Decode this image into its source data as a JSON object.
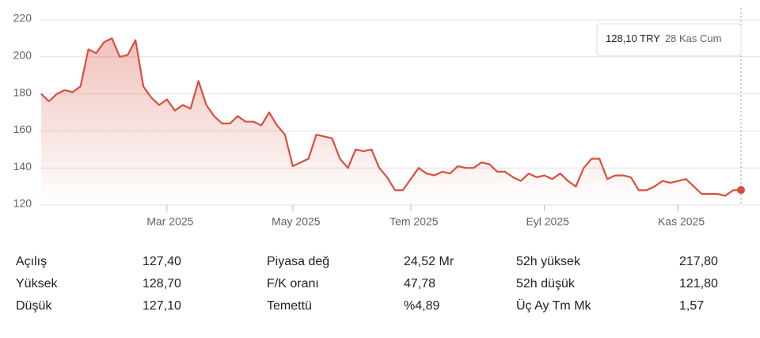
{
  "chart_data": {
    "type": "line",
    "color": "#d94f3d",
    "categories": [
      null,
      null,
      null,
      null,
      null,
      null,
      null,
      null,
      null,
      null,
      null,
      null,
      null,
      null,
      null,
      null,
      "Mar 2025",
      null,
      null,
      null,
      null,
      null,
      null,
      null,
      null,
      null,
      null,
      null,
      null,
      null,
      null,
      null,
      "May 2025",
      null,
      null,
      null,
      null,
      null,
      null,
      null,
      null,
      null,
      null,
      null,
      null,
      null,
      null,
      "Tem 2025",
      null,
      null,
      null,
      null,
      null,
      null,
      null,
      null,
      null,
      null,
      null,
      null,
      null,
      null,
      null,
      null,
      "Eyl 2025",
      null,
      null,
      null,
      null,
      null,
      null,
      null,
      null,
      null,
      null,
      null,
      null,
      null,
      null,
      null,
      null,
      "Kas 2025",
      null,
      null,
      null,
      null,
      null,
      null,
      null,
      null
    ],
    "values": [
      180,
      176,
      180,
      182,
      181,
      184,
      204,
      202,
      208,
      210,
      200,
      201,
      209,
      184,
      178,
      174,
      177,
      171,
      174,
      172,
      187,
      174,
      168,
      164,
      164,
      168,
      165,
      165,
      163,
      170,
      163,
      158,
      141,
      143,
      145,
      158,
      157,
      156,
      145,
      140,
      150,
      149,
      150,
      140,
      135,
      128,
      128,
      134,
      140,
      137,
      136,
      138,
      137,
      141,
      140,
      140,
      143,
      142,
      138,
      138,
      135,
      133,
      137,
      135,
      136,
      134,
      137,
      133,
      130,
      140,
      145,
      145,
      134,
      136,
      136,
      135,
      128,
      128,
      130,
      133,
      132,
      133,
      134,
      130,
      126,
      126,
      126,
      125,
      128,
      128.1
    ],
    "ylim": [
      120,
      220
    ],
    "yticks": [
      120,
      140,
      160,
      180,
      200,
      220
    ],
    "grid": true,
    "tooltip": {
      "price": "128,10 TRY",
      "date": "28 Kas Cum"
    }
  },
  "stats": [
    [
      "Açılış",
      "127,40",
      "Piyasa değ",
      "24,52 Mr",
      "52h yüksek",
      "217,80"
    ],
    [
      "Yüksek",
      "128,70",
      "F/K oranı",
      "47,78",
      "52h düşük",
      "121,80"
    ],
    [
      "Düşük",
      "127,10",
      "Temettü",
      "%4,89",
      "Üç Ay Tm Mk",
      "1,57"
    ]
  ]
}
